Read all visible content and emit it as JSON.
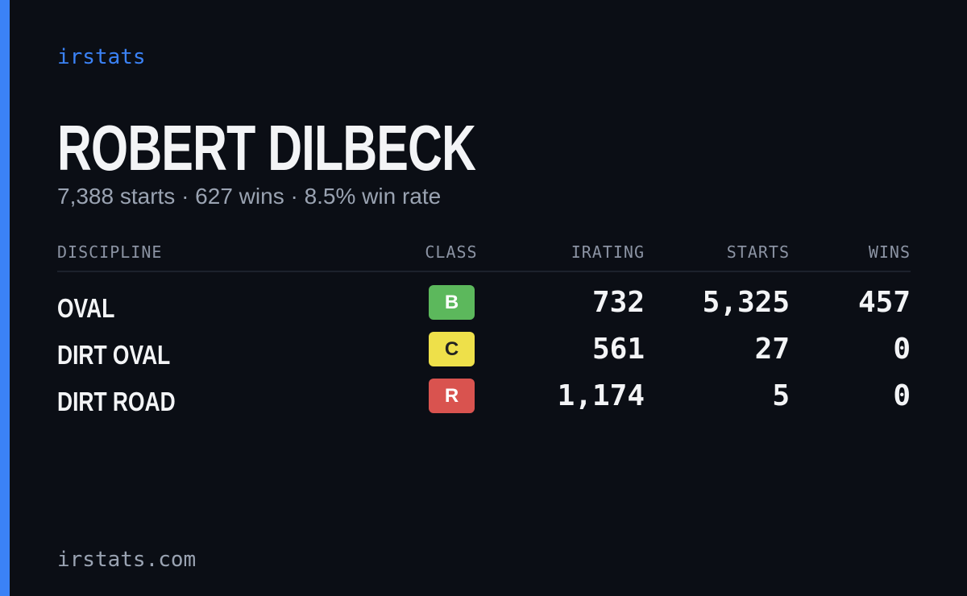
{
  "header": {
    "brand": "irstats",
    "name": "ROBERT DILBECK",
    "summary": "7,388 starts · 627 wins · 8.5% win rate"
  },
  "table": {
    "columns": [
      "DISCIPLINE",
      "CLASS",
      "IRATING",
      "STARTS",
      "WINS"
    ],
    "rows": [
      {
        "discipline": "OVAL",
        "class": "B",
        "class_color": "#5cb85c",
        "class_text_color": "#ffffff",
        "irating": "732",
        "starts": "5,325",
        "wins": "457"
      },
      {
        "discipline": "DIRT OVAL",
        "class": "C",
        "class_color": "#eee04a",
        "class_text_color": "#222222",
        "irating": "561",
        "starts": "27",
        "wins": "0"
      },
      {
        "discipline": "DIRT ROAD",
        "class": "R",
        "class_color": "#d9534f",
        "class_text_color": "#ffffff",
        "irating": "1,174",
        "starts": "5",
        "wins": "0"
      }
    ]
  },
  "footer": {
    "site": "irstats.com"
  }
}
